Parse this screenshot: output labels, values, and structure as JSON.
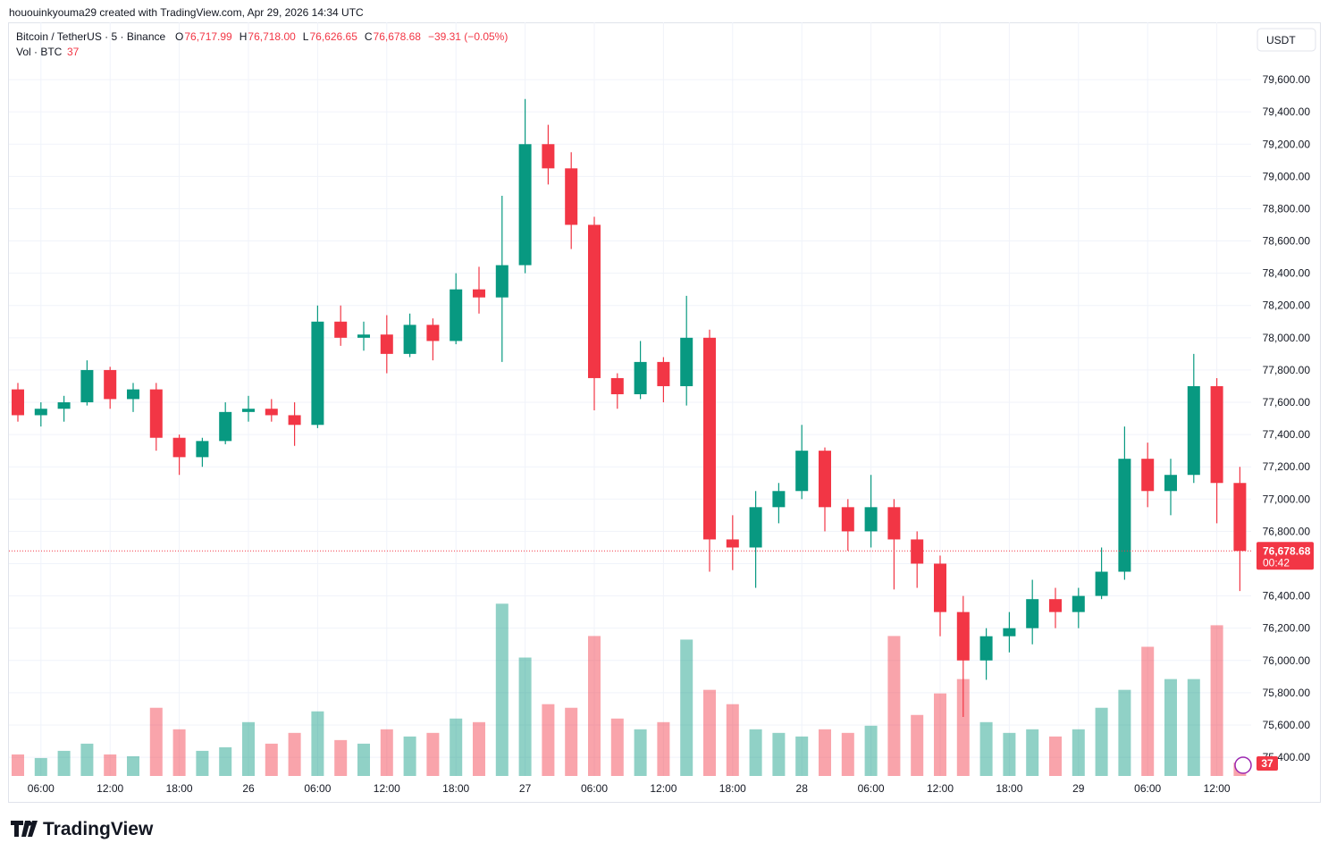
{
  "header": {
    "credit": "hououinkyouma29 created with TradingView.com, Apr 29, 2026 14:34 UTC"
  },
  "chart_data": {
    "type": "candlestick",
    "title": "Bitcoin / TetherUS · 5 · Binance",
    "ohlc_legend": [
      {
        "label": "O",
        "value": "76,717.99"
      },
      {
        "label": "H",
        "value": "76,718.00"
      },
      {
        "label": "L",
        "value": "76,626.65"
      },
      {
        "label": "C",
        "value": "76,678.68"
      }
    ],
    "change": "−39.31 (−0.05%)",
    "volume_title": "Vol · BTC",
    "currency": "USDT",
    "categories": [
      null,
      "06:00",
      null,
      null,
      "12:00",
      null,
      null,
      "18:00",
      null,
      null,
      "26",
      null,
      null,
      "06:00",
      null,
      null,
      "12:00",
      null,
      null,
      "18:00",
      null,
      null,
      "27",
      null,
      null,
      "06:00",
      null,
      null,
      "12:00",
      null,
      null,
      "18:00",
      null,
      null,
      "28",
      null,
      null,
      "06:00",
      null,
      null,
      "12:00",
      null,
      null,
      "18:00",
      null,
      null,
      "29",
      null,
      null,
      "06:00",
      null,
      null,
      "12:00",
      null
    ],
    "open": [
      77680,
      77520,
      77560,
      77600,
      77800,
      77620,
      77680,
      77380,
      77260,
      77360,
      77540,
      77560,
      77520,
      77460,
      78100,
      78000,
      78020,
      77900,
      78080,
      77980,
      78300,
      78250,
      78450,
      79200,
      79050,
      78700,
      77750,
      77650,
      77850,
      77700,
      78000,
      76750,
      76700,
      76950,
      77050,
      77300,
      76950,
      76800,
      76950,
      76750,
      76600,
      76300,
      76000,
      76150,
      76200,
      76380,
      76300,
      76400,
      76550,
      77250,
      77050,
      77150,
      77700,
      77100
    ],
    "high": [
      77720,
      77600,
      77640,
      77860,
      77820,
      77720,
      77720,
      77400,
      77380,
      77600,
      77640,
      77620,
      77600,
      78200,
      78200,
      78100,
      78140,
      78150,
      78120,
      78400,
      78440,
      78880,
      79480,
      79320,
      79150,
      78750,
      77780,
      77980,
      77880,
      78260,
      78050,
      76900,
      77050,
      77100,
      77460,
      77320,
      77000,
      77150,
      77000,
      76800,
      76650,
      76400,
      76200,
      76300,
      76500,
      76450,
      76450,
      76700,
      77450,
      77350,
      77250,
      77900,
      77750,
      77200
    ],
    "low": [
      77480,
      77450,
      77480,
      77580,
      77560,
      77540,
      77300,
      77150,
      77200,
      77340,
      77480,
      77480,
      77330,
      77440,
      77950,
      77920,
      77780,
      77880,
      77860,
      77960,
      78150,
      77850,
      78400,
      78950,
      78550,
      77550,
      77560,
      77620,
      77600,
      77580,
      76550,
      76560,
      76450,
      76850,
      77000,
      76800,
      76680,
      76700,
      76440,
      76450,
      76150,
      75650,
      75880,
      76050,
      76100,
      76200,
      76200,
      76380,
      76500,
      76950,
      76900,
      77100,
      76850,
      76430
    ],
    "close": [
      77520,
      77560,
      77600,
      77800,
      77620,
      77680,
      77380,
      77260,
      77360,
      77540,
      77560,
      77520,
      77460,
      78100,
      78000,
      78020,
      77900,
      78080,
      77980,
      78300,
      78250,
      78450,
      79200,
      79050,
      78700,
      77750,
      77650,
      77850,
      77700,
      78000,
      76750,
      76700,
      76950,
      77050,
      77300,
      76950,
      76800,
      76950,
      76750,
      76600,
      76300,
      76000,
      76150,
      76200,
      76380,
      76300,
      76400,
      76550,
      77250,
      77050,
      77150,
      77700,
      77100,
      76678.68
    ],
    "volume": [
      60,
      50,
      70,
      90,
      60,
      55,
      190,
      130,
      70,
      80,
      150,
      90,
      120,
      180,
      100,
      90,
      130,
      110,
      120,
      160,
      150,
      480,
      330,
      200,
      190,
      390,
      160,
      130,
      150,
      380,
      240,
      200,
      130,
      120,
      110,
      130,
      120,
      140,
      390,
      170,
      230,
      270,
      150,
      120,
      130,
      110,
      130,
      190,
      240,
      360,
      270,
      270,
      420,
      37
    ],
    "up_color": "#089981",
    "down_color": "#f23645",
    "ylim": [
      75284,
      79955
    ],
    "volume_ylim": [
      0,
      2100
    ],
    "yticks": [
      {
        "value": 75400,
        "label": "75,400.00"
      },
      {
        "value": 75600,
        "label": "75,600.00"
      },
      {
        "value": 75800,
        "label": "75,800.00"
      },
      {
        "value": 76000,
        "label": "76,000.00"
      },
      {
        "value": 76200,
        "label": "76,200.00"
      },
      {
        "value": 76400,
        "label": "76,400.00"
      },
      {
        "value": 76600,
        "label": "76,600.00"
      },
      {
        "value": 76800,
        "label": "76,800.00"
      },
      {
        "value": 77000,
        "label": "77,000.00"
      },
      {
        "value": 77200,
        "label": "77,200.00"
      },
      {
        "value": 77400,
        "label": "77,400.00"
      },
      {
        "value": 77600,
        "label": "77,600.00"
      },
      {
        "value": 77800,
        "label": "77,800.00"
      },
      {
        "value": 78000,
        "label": "78,000.00"
      },
      {
        "value": 78200,
        "label": "78,200.00"
      },
      {
        "value": 78400,
        "label": "78,400.00"
      },
      {
        "value": 78600,
        "label": "78,600.00"
      },
      {
        "value": 78800,
        "label": "78,800.00"
      },
      {
        "value": 79000,
        "label": "79,000.00"
      },
      {
        "value": 79200,
        "label": "79,200.00"
      },
      {
        "value": 79400,
        "label": "79,400.00"
      },
      {
        "value": 79600,
        "label": "79,600.00"
      }
    ],
    "last_price": {
      "value": 76678.68,
      "label": "76,678.68"
    },
    "countdown": "00:42",
    "grid": true
  },
  "footer": {
    "logo": "TradingView"
  }
}
